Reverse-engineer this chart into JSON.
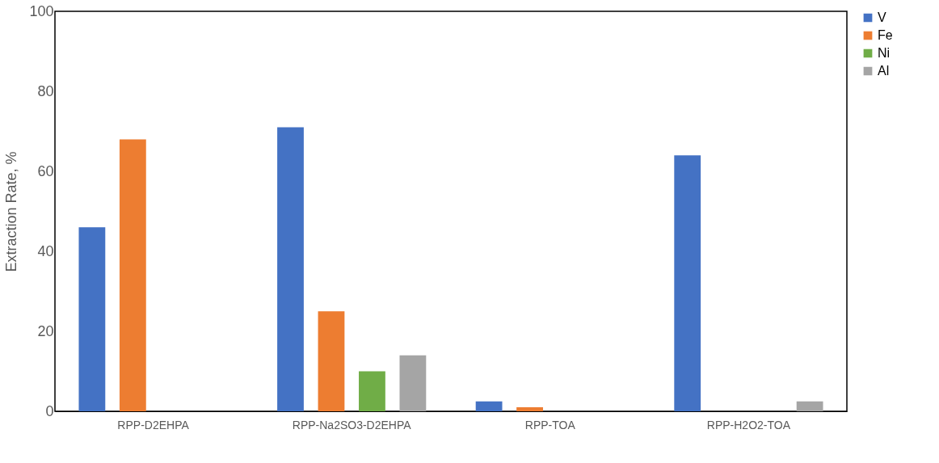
{
  "chart_data": {
    "type": "bar",
    "ylabel": "Extraction Rate, %",
    "categories": [
      "RPP-D2EHPA",
      "RPP-Na2SO3-D2EHPA",
      "RPP-TOA",
      "RPP-H2O2-TOA"
    ],
    "series": [
      {
        "name": "V",
        "color": "#4472c4",
        "values": [
          46,
          71,
          2.5,
          64
        ]
      },
      {
        "name": "Fe",
        "color": "#ed7d31",
        "values": [
          68,
          25,
          1,
          null
        ]
      },
      {
        "name": "Ni",
        "color": "#70ad47",
        "values": [
          null,
          10,
          null,
          null
        ]
      },
      {
        "name": "Al",
        "color": "#a5a5a5",
        "values": [
          null,
          14,
          null,
          2.5
        ]
      }
    ],
    "ylim": [
      0,
      100
    ],
    "yticks": [
      0,
      20,
      40,
      60,
      80,
      100
    ],
    "grid": false,
    "legend": "right"
  }
}
